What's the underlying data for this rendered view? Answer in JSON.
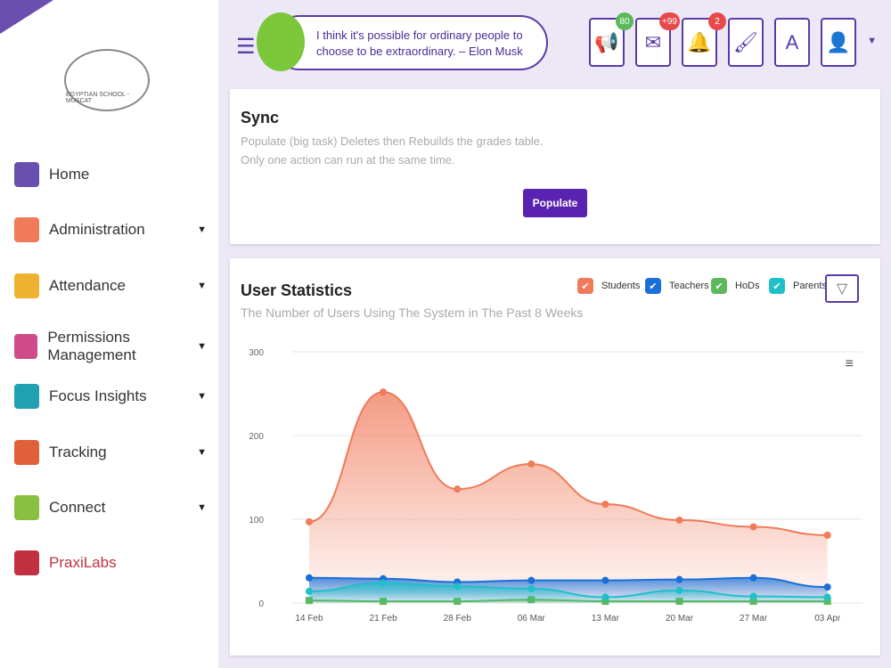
{
  "sidebar": {
    "logo_text": "EGYPTIAN SCHOOL - MUSCAT",
    "items": [
      {
        "label": "Home",
        "color": "#6a4fb0",
        "caret": false
      },
      {
        "label": "Administration",
        "color": "#f07a5a",
        "caret": true
      },
      {
        "label": "Attendance",
        "color": "#f0b030",
        "caret": true
      },
      {
        "label": "Permissions Management",
        "color": "#d04a8a",
        "caret": true
      },
      {
        "label": "Focus Insights",
        "color": "#20a0b0",
        "caret": true
      },
      {
        "label": "Tracking",
        "color": "#e0603a",
        "caret": true
      },
      {
        "label": "Connect",
        "color": "#8ac040",
        "caret": true
      },
      {
        "label": "PraxiLabs",
        "color": "#c03040",
        "caret": false
      }
    ]
  },
  "header": {
    "quote": "I think it's possible for ordinary people to choose to be extraordinary. – Elon Musk",
    "buttons": [
      {
        "icon": "megaphone-icon",
        "glyph": "📢",
        "badge": "80",
        "badge_color": "#5cb85c"
      },
      {
        "icon": "mail-icon",
        "glyph": "✉",
        "badge": "+99",
        "badge_color": "#e84a4a"
      },
      {
        "icon": "bell-icon",
        "glyph": "🔔",
        "badge": "2",
        "badge_color": "#e84a4a"
      },
      {
        "icon": "brush-icon",
        "glyph": "🖌",
        "badge": null
      },
      {
        "icon": "translate-icon",
        "glyph": "A",
        "badge": null
      },
      {
        "icon": "user-avatar-icon",
        "glyph": "👤",
        "badge": null
      }
    ]
  },
  "sync": {
    "title": "Sync",
    "line1": "Populate (big task) Deletes then Rebuilds the grades table.",
    "line2": "Only one action can run at the same time.",
    "button": "Populate"
  },
  "stats": {
    "title": "User Statistics",
    "subtitle": "The Number of Users Using The System in The Past 8 Weeks"
  },
  "chart_data": {
    "type": "area",
    "categories": [
      "14 Feb",
      "21 Feb",
      "28 Feb",
      "06 Mar",
      "13 Mar",
      "20 Mar",
      "27 Mar",
      "03 Apr"
    ],
    "yticks": [
      "0",
      "100",
      "200",
      "300"
    ],
    "ylim": [
      0,
      300
    ],
    "series": [
      {
        "name": "Students",
        "color": "#f07a5a",
        "values": [
          97,
          252,
          136,
          166,
          118,
          99,
          91,
          81
        ]
      },
      {
        "name": "Teachers",
        "color": "#1a6fd8",
        "values": [
          30,
          29,
          25,
          27,
          27,
          28,
          30,
          19
        ]
      },
      {
        "name": "HoDs",
        "color": "#5cb85c",
        "values": [
          3,
          2,
          2,
          4,
          2,
          2,
          2,
          2
        ]
      },
      {
        "name": "Parents",
        "color": "#20c0c8",
        "values": [
          14,
          24,
          20,
          17,
          7,
          15,
          8,
          7
        ]
      }
    ]
  }
}
